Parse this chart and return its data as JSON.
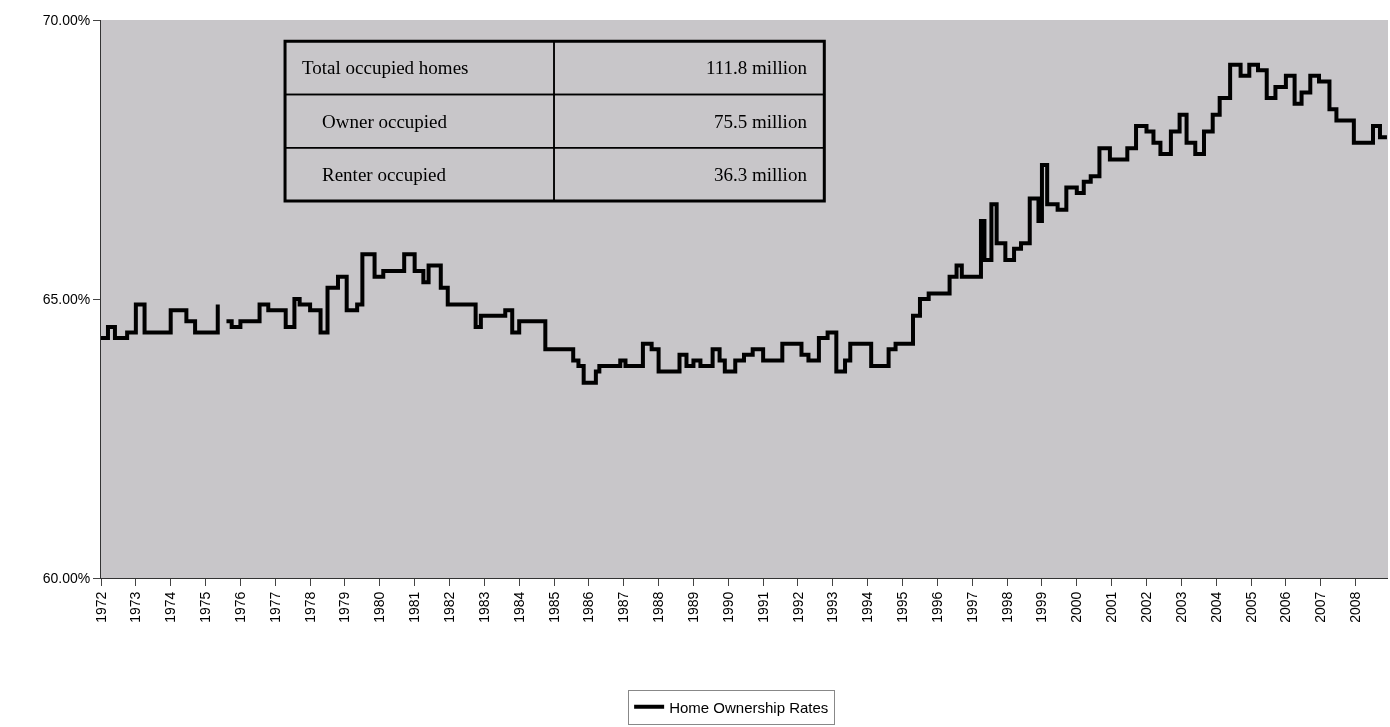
{
  "chart_data": {
    "type": "step",
    "x": [
      1972.0,
      1972.2,
      1972.4,
      1972.75,
      1973.0,
      1973.25,
      1974.0,
      1974.45,
      1974.7,
      1975.35,
      1975.55,
      1975.6,
      1975.75,
      1976.0,
      1976.55,
      1976.8,
      1977.3,
      1977.55,
      1977.7,
      1978.0,
      1978.3,
      1978.5,
      1978.8,
      1979.05,
      1979.35,
      1979.5,
      1979.85,
      1980.1,
      1980.7,
      1981.0,
      1981.25,
      1981.4,
      1981.75,
      1981.95,
      1982.75,
      1982.9,
      1983.6,
      1983.8,
      1984.0,
      1984.75,
      1985.55,
      1985.7,
      1985.85,
      1986.2,
      1986.3,
      1986.9,
      1987.05,
      1987.55,
      1987.8,
      1988.0,
      1988.6,
      1988.8,
      1989.0,
      1989.2,
      1989.55,
      1989.75,
      1989.9,
      1990.2,
      1990.45,
      1990.7,
      1991.0,
      1991.55,
      1992.1,
      1992.3,
      1992.6,
      1992.85,
      1993.1,
      1993.35,
      1993.5,
      1994.1,
      1994.6,
      1994.8,
      1995.3,
      1995.5,
      1995.75,
      1996.35,
      1996.55,
      1996.7,
      1997.25,
      1997.35,
      1997.55,
      1997.7,
      1997.95,
      1998.2,
      1998.4,
      1998.65,
      1998.9,
      1999.0,
      1999.15,
      1999.45,
      1999.7,
      2000.0,
      2000.2,
      2000.4,
      2000.65,
      2000.95,
      2001.45,
      2001.7,
      2002.0,
      2002.2,
      2002.4,
      2002.7,
      2002.95,
      2003.15,
      2003.4,
      2003.65,
      2003.9,
      2004.1,
      2004.4,
      2004.7,
      2004.95,
      2005.2,
      2005.45,
      2005.7,
      2006.0,
      2006.25,
      2006.45,
      2006.7,
      2006.95,
      2007.25,
      2007.45,
      2007.95,
      2008.5,
      2008.7,
      2008.9
    ],
    "series": [
      {
        "name": "Home Ownership Rates",
        "color": "#000000",
        "values": [
          64.3,
          64.5,
          64.3,
          64.4,
          64.9,
          64.4,
          64.8,
          64.6,
          64.4,
          64.9,
          null,
          64.6,
          64.5,
          64.6,
          64.9,
          64.8,
          64.5,
          65.0,
          64.9,
          64.8,
          64.4,
          65.2,
          65.4,
          64.8,
          64.9,
          65.8,
          65.4,
          65.5,
          65.8,
          65.5,
          65.3,
          65.6,
          65.2,
          64.9,
          64.5,
          64.7,
          64.8,
          64.4,
          64.6,
          64.1,
          63.9,
          63.8,
          63.5,
          63.7,
          63.8,
          63.9,
          63.8,
          64.2,
          64.1,
          63.7,
          64.0,
          63.8,
          63.9,
          63.8,
          64.1,
          63.9,
          63.7,
          63.9,
          64.0,
          64.1,
          63.9,
          64.2,
          64.0,
          63.9,
          64.3,
          64.4,
          63.7,
          63.9,
          64.2,
          63.8,
          64.1,
          64.2,
          64.7,
          65.0,
          65.1,
          65.4,
          65.6,
          65.4,
          66.4,
          65.7,
          66.7,
          66.0,
          65.7,
          65.9,
          66.0,
          66.8,
          66.4,
          67.4,
          66.7,
          66.6,
          67.0,
          66.9,
          67.1,
          67.2,
          67.7,
          67.5,
          67.7,
          68.1,
          68.0,
          67.8,
          67.6,
          68.0,
          68.3,
          67.8,
          67.6,
          68.0,
          68.3,
          68.6,
          69.2,
          69.0,
          69.2,
          69.1,
          68.6,
          68.8,
          69.0,
          68.5,
          68.7,
          69.0,
          68.9,
          68.4,
          68.2,
          67.8,
          68.1,
          67.9,
          67.9
        ]
      }
    ],
    "xlim": [
      1972,
      2008.93
    ],
    "xticks": [
      1972,
      1973,
      1974,
      1975,
      1976,
      1977,
      1978,
      1979,
      1980,
      1981,
      1982,
      1983,
      1984,
      1985,
      1986,
      1987,
      1988,
      1989,
      1990,
      1991,
      1992,
      1993,
      1994,
      1995,
      1996,
      1997,
      1998,
      1999,
      2000,
      2001,
      2002,
      2003,
      2004,
      2005,
      2006,
      2007,
      2008
    ],
    "ylim": [
      60,
      70
    ],
    "yticks": [
      {
        "value": 60,
        "label": "60.00%"
      },
      {
        "value": 65,
        "label": "65.00%"
      },
      {
        "value": 70,
        "label": "70.00%"
      }
    ],
    "grid": false,
    "legend": "bottom",
    "line_style": "solid",
    "marker": "none",
    "annotations": [
      "Total occupied homes",
      "111.8 million",
      "Owner occupied",
      "75.5 million",
      "Renter occupied",
      "36.3 million"
    ]
  }
}
